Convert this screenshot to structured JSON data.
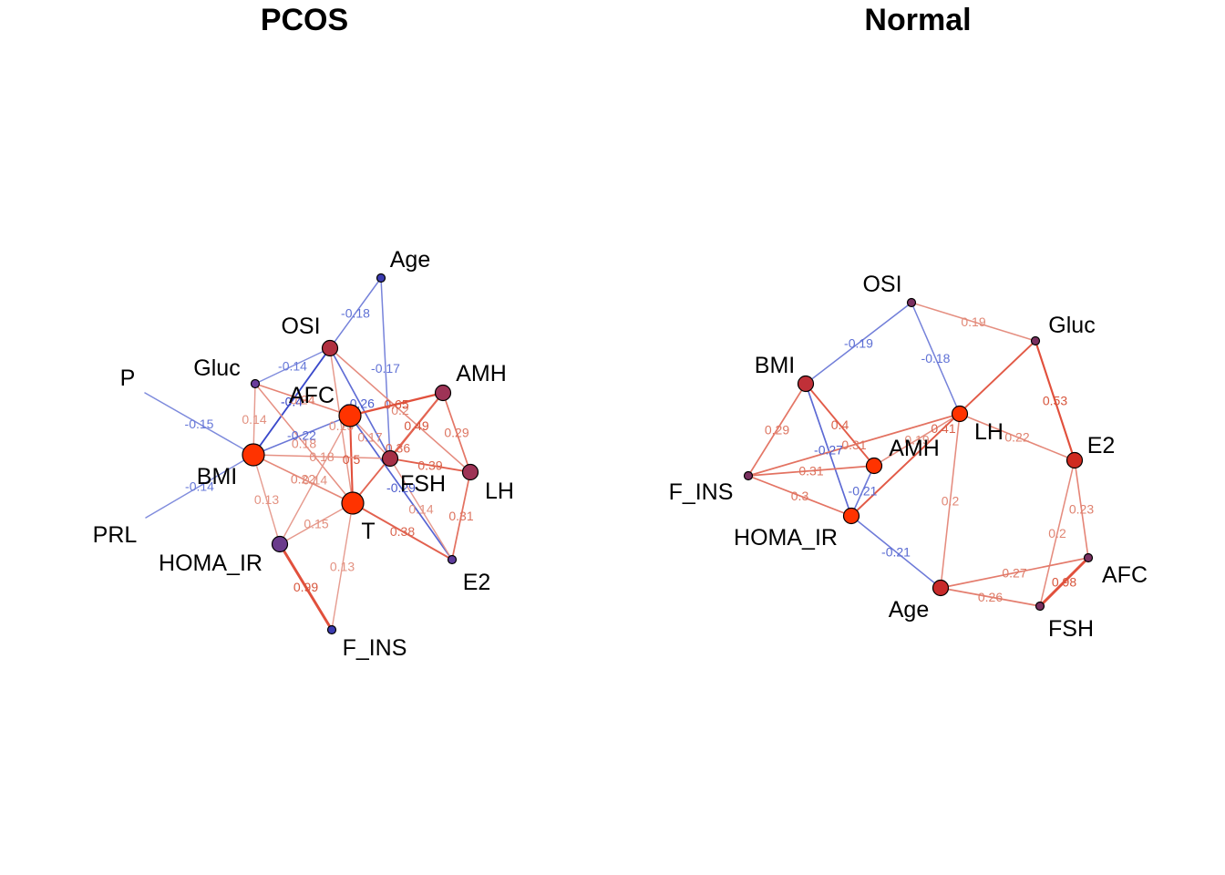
{
  "panels": [
    {
      "title": "PCOS",
      "nodes": [
        {
          "id": "Age",
          "label": "Age",
          "color": "#3b3bb0",
          "size": "small"
        },
        {
          "id": "OSI",
          "label": "OSI",
          "color": "#b03040",
          "size": "medium"
        },
        {
          "id": "Gluc",
          "label": "Gluc",
          "color": "#6a3c9c",
          "size": "small"
        },
        {
          "id": "P",
          "label": "P",
          "color": "#3b3bb0",
          "size": "none"
        },
        {
          "id": "AFC",
          "label": "AFC",
          "color": "#ff3300",
          "size": "large"
        },
        {
          "id": "AMH",
          "label": "AMH",
          "color": "#9e3356",
          "size": "medium"
        },
        {
          "id": "FSH",
          "label": "FSH",
          "color": "#a63046",
          "size": "medium"
        },
        {
          "id": "LH",
          "label": "LH",
          "color": "#9e3356",
          "size": "medium"
        },
        {
          "id": "BMI",
          "label": "BMI",
          "color": "#ff3300",
          "size": "large"
        },
        {
          "id": "PRL",
          "label": "PRL",
          "color": "#3b3bb0",
          "size": "none"
        },
        {
          "id": "T",
          "label": "T",
          "color": "#ff3300",
          "size": "large"
        },
        {
          "id": "HOMA_IR",
          "label": "HOMA_IR",
          "color": "#6a3c8c",
          "size": "medium"
        },
        {
          "id": "E2",
          "label": "E2",
          "color": "#5e3c9c",
          "size": "small"
        },
        {
          "id": "F_INS",
          "label": "F_INS",
          "color": "#3b3bb0",
          "size": "small"
        }
      ],
      "edges": [
        {
          "from": "Age",
          "to": "OSI",
          "weight": -0.18,
          "label": "-0.18"
        },
        {
          "from": "Age",
          "to": "FSH",
          "weight": -0.17,
          "label": "-0.17"
        },
        {
          "from": "OSI",
          "to": "LH",
          "weight": 0.2,
          "label": "0.2"
        },
        {
          "from": "OSI",
          "to": "Gluc",
          "weight": -0.14,
          "label": "-0.14"
        },
        {
          "from": "OSI",
          "to": "T",
          "weight": 0.15,
          "label": "0.15"
        },
        {
          "from": "OSI",
          "to": "BMI",
          "weight": -0.4,
          "label": "-0.4"
        },
        {
          "from": "OSI",
          "to": "FSH",
          "weight": -0.26,
          "label": "-0.26"
        },
        {
          "from": "Gluc",
          "to": "BMI",
          "weight": 0.14,
          "label": "0.14"
        },
        {
          "from": "Gluc",
          "to": "AFC",
          "weight": 0.24,
          "label": "0.24"
        },
        {
          "from": "Gluc",
          "to": "T",
          "weight": 0.18,
          "label": "0.18"
        },
        {
          "from": "P",
          "to": "BMI",
          "weight": -0.15,
          "label": "-0.15"
        },
        {
          "from": "AFC",
          "to": "AMH",
          "weight": 0.65,
          "label": "0.65"
        },
        {
          "from": "AFC",
          "to": "FSH",
          "weight": 0.17,
          "label": "0.17"
        },
        {
          "from": "AFC",
          "to": "E2",
          "weight": -0.29,
          "label": "-0.29"
        },
        {
          "from": "AFC",
          "to": "BMI",
          "weight": -0.22,
          "label": "-0.22"
        },
        {
          "from": "AFC",
          "to": "T",
          "weight": 0.5,
          "label": "0.5"
        },
        {
          "from": "AFC",
          "to": "HOMA_IR",
          "weight": 0.14,
          "label": "0.14"
        },
        {
          "from": "AMH",
          "to": "FSH",
          "weight": 0.49,
          "label": "0.49"
        },
        {
          "from": "AMH",
          "to": "LH",
          "weight": 0.29,
          "label": "0.29"
        },
        {
          "from": "AMH",
          "to": "T",
          "weight": 0.36,
          "label": "0.36"
        },
        {
          "from": "FSH",
          "to": "LH",
          "weight": 0.39,
          "label": "0.39"
        },
        {
          "from": "FSH",
          "to": "E2",
          "weight": 0.14,
          "label": "0.14"
        },
        {
          "from": "LH",
          "to": "E2",
          "weight": 0.31,
          "label": "0.31"
        },
        {
          "from": "BMI",
          "to": "PRL",
          "weight": -0.14,
          "label": "-0.14"
        },
        {
          "from": "BMI",
          "to": "HOMA_IR",
          "weight": 0.13,
          "label": "0.13"
        },
        {
          "from": "BMI",
          "to": "T",
          "weight": 0.22,
          "label": "0.22"
        },
        {
          "from": "BMI",
          "to": "FSH",
          "weight": 0.18,
          "label": "0.18"
        },
        {
          "from": "T",
          "to": "HOMA_IR",
          "weight": 0.15,
          "label": "0.15"
        },
        {
          "from": "T",
          "to": "E2",
          "weight": 0.38,
          "label": "0.38"
        },
        {
          "from": "T",
          "to": "F_INS",
          "weight": 0.13,
          "label": "0.13"
        },
        {
          "from": "HOMA_IR",
          "to": "F_INS",
          "weight": 0.99,
          "label": "0.99"
        }
      ]
    },
    {
      "title": "Normal",
      "nodes": [
        {
          "id": "OSI",
          "label": "OSI",
          "color": "#7a3060",
          "size": "small"
        },
        {
          "id": "Gluc",
          "label": "Gluc",
          "color": "#7a3060",
          "size": "small"
        },
        {
          "id": "BMI",
          "label": "BMI",
          "color": "#c03038",
          "size": "medium"
        },
        {
          "id": "LH",
          "label": "LH",
          "color": "#ff3300",
          "size": "medium"
        },
        {
          "id": "E2",
          "label": "E2",
          "color": "#d02a20",
          "size": "medium"
        },
        {
          "id": "AMH",
          "label": "AMH",
          "color": "#ff3300",
          "size": "medium"
        },
        {
          "id": "F_INS",
          "label": "F_INS",
          "color": "#7a3060",
          "size": "small"
        },
        {
          "id": "HOMA_IR",
          "label": "HOMA_IR",
          "color": "#ff3300",
          "size": "medium"
        },
        {
          "id": "AFC",
          "label": "AFC",
          "color": "#7a3060",
          "size": "small"
        },
        {
          "id": "Age",
          "label": "Age",
          "color": "#c82a2a",
          "size": "medium"
        },
        {
          "id": "FSH",
          "label": "FSH",
          "color": "#7a3060",
          "size": "small"
        }
      ],
      "edges": [
        {
          "from": "OSI",
          "to": "BMI",
          "weight": -0.19,
          "label": "-0.19"
        },
        {
          "from": "OSI",
          "to": "Gluc",
          "weight": 0.19,
          "label": "0.19"
        },
        {
          "from": "OSI",
          "to": "LH",
          "weight": -0.18,
          "label": "-0.18"
        },
        {
          "from": "Gluc",
          "to": "HOMA_IR",
          "weight": 0.41,
          "label": "0.41"
        },
        {
          "from": "Gluc",
          "to": "E2",
          "weight": 0.53,
          "label": "0.53"
        },
        {
          "from": "BMI",
          "to": "AMH",
          "weight": 0.4,
          "label": "0.4"
        },
        {
          "from": "BMI",
          "to": "F_INS",
          "weight": 0.29,
          "label": "0.29"
        },
        {
          "from": "BMI",
          "to": "HOMA_IR",
          "weight": -0.27,
          "label": "-0.27"
        },
        {
          "from": "LH",
          "to": "AMH",
          "weight": 0.19,
          "label": "0.19"
        },
        {
          "from": "LH",
          "to": "E2",
          "weight": 0.22,
          "label": "0.22"
        },
        {
          "from": "AMH",
          "to": "F_INS",
          "weight": 0.31,
          "label": "0.31"
        },
        {
          "from": "AMH",
          "to": "HOMA_IR",
          "weight": -0.21,
          "label": "-0.21"
        },
        {
          "from": "LH",
          "to": "F_INS",
          "weight": 0.31,
          "label": "0.31"
        },
        {
          "from": "F_INS",
          "to": "HOMA_IR",
          "weight": 0.3,
          "label": "0.3"
        },
        {
          "from": "LH",
          "to": "Age",
          "weight": 0.2,
          "label": "0.2"
        },
        {
          "from": "HOMA_IR",
          "to": "Age",
          "weight": -0.21,
          "label": "-0.21"
        },
        {
          "from": "E2",
          "to": "AFC",
          "weight": 0.23,
          "label": "0.23"
        },
        {
          "from": "E2",
          "to": "FSH",
          "weight": 0.2,
          "label": "0.2"
        },
        {
          "from": "Age",
          "to": "AFC",
          "weight": 0.27,
          "label": "0.27"
        },
        {
          "from": "Age",
          "to": "FSH",
          "weight": 0.26,
          "label": "0.26"
        },
        {
          "from": "AFC",
          "to": "FSH",
          "weight": 0.98,
          "label": "0.98"
        }
      ]
    }
  ]
}
